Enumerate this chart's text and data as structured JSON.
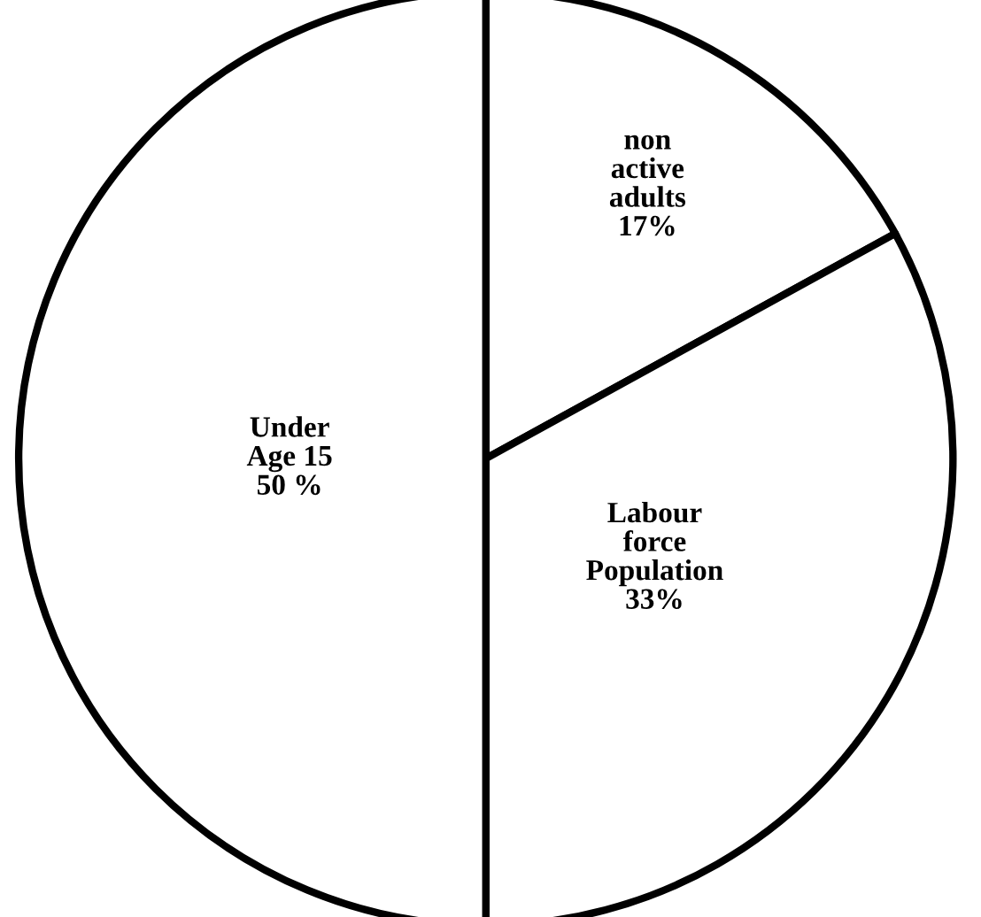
{
  "chart_data": {
    "type": "pie",
    "categories": [
      "non\nactive\nadults",
      "Labour\nforce\nPopulation",
      "Under\nAge 15"
    ],
    "values": [
      17,
      33,
      50
    ],
    "value_labels": [
      "17%",
      "33%",
      "50 %"
    ],
    "colors": [
      "#ffffff",
      "#ffffff",
      "#ffffff"
    ]
  }
}
